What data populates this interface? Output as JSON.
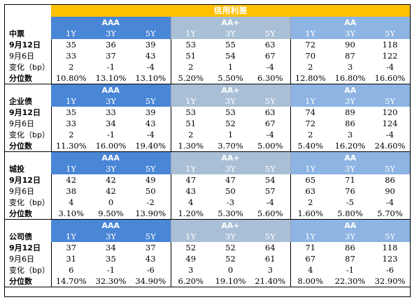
{
  "header": {
    "title": "信用利差"
  },
  "grades": [
    "AAA",
    "AA+",
    "AA"
  ],
  "tenors": [
    "1Y",
    "3Y",
    "5Y"
  ],
  "blocks": [
    {
      "name": "中票",
      "rows": [
        {
          "label": "9月12日",
          "values": [
            "35",
            "36",
            "39",
            "53",
            "55",
            "63",
            "72",
            "90",
            "118"
          ]
        },
        {
          "label": "9月6日",
          "values": [
            "33",
            "37",
            "43",
            "51",
            "54",
            "67",
            "70",
            "87",
            "122"
          ]
        },
        {
          "label": "变化（bp）",
          "values": [
            "2",
            "-1",
            "-4",
            "2",
            "1",
            "-4",
            "2",
            "3",
            "-4"
          ]
        },
        {
          "label": "分位数",
          "values": [
            "10.80%",
            "13.10%",
            "13.10%",
            "5.20%",
            "5.50%",
            "6.30%",
            "12.80%",
            "16.80%",
            "16.60%"
          ]
        }
      ]
    },
    {
      "name": "企业债",
      "rows": [
        {
          "label": "9月12日",
          "values": [
            "35",
            "33",
            "39",
            "53",
            "53",
            "63",
            "74",
            "89",
            "120"
          ]
        },
        {
          "label": "9月6日",
          "values": [
            "33",
            "34",
            "43",
            "51",
            "52",
            "67",
            "72",
            "86",
            "124"
          ]
        },
        {
          "label": "变化（bp）",
          "values": [
            "2",
            "-1",
            "-4",
            "2",
            "1",
            "-4",
            "2",
            "3",
            "-4"
          ]
        },
        {
          "label": "分位数",
          "values": [
            "11.30%",
            "16.00%",
            "19.40%",
            "1.30%",
            "3.70%",
            "5.00%",
            "5.40%",
            "16.20%",
            "24.60%"
          ]
        }
      ]
    },
    {
      "name": "城投",
      "rows": [
        {
          "label": "9月12日",
          "values": [
            "42",
            "42",
            "49",
            "47",
            "47",
            "54",
            "65",
            "71",
            "86"
          ]
        },
        {
          "label": "9月6日",
          "values": [
            "38",
            "42",
            "50",
            "43",
            "50",
            "57",
            "63",
            "76",
            "90"
          ]
        },
        {
          "label": "变化（bp）",
          "values": [
            "4",
            "0",
            "-2",
            "4",
            "-3",
            "-4",
            "2",
            "-5",
            "-4"
          ]
        },
        {
          "label": "分位数",
          "values": [
            "3.10%",
            "9.50%",
            "13.90%",
            "1.20%",
            "5.30%",
            "5.60%",
            "1.60%",
            "5.80%",
            "5.70%"
          ]
        }
      ]
    },
    {
      "name": "公司债",
      "rows": [
        {
          "label": "9月12日",
          "values": [
            "37",
            "34",
            "37",
            "52",
            "52",
            "64",
            "71",
            "86",
            "118"
          ]
        },
        {
          "label": "9月6日",
          "values": [
            "31",
            "35",
            "43",
            "49",
            "52",
            "61",
            "67",
            "87",
            "123"
          ]
        },
        {
          "label": "变化（bp）",
          "values": [
            "6",
            "-1",
            "-6",
            "3",
            "0",
            "3",
            "4",
            "-1",
            "-6"
          ]
        },
        {
          "label": "分位数",
          "values": [
            "14.70%",
            "32.30%",
            "34.90%",
            "6.20%",
            "19.10%",
            "21.40%",
            "8.00%",
            "22.30%",
            "32.90%"
          ]
        }
      ]
    }
  ]
}
